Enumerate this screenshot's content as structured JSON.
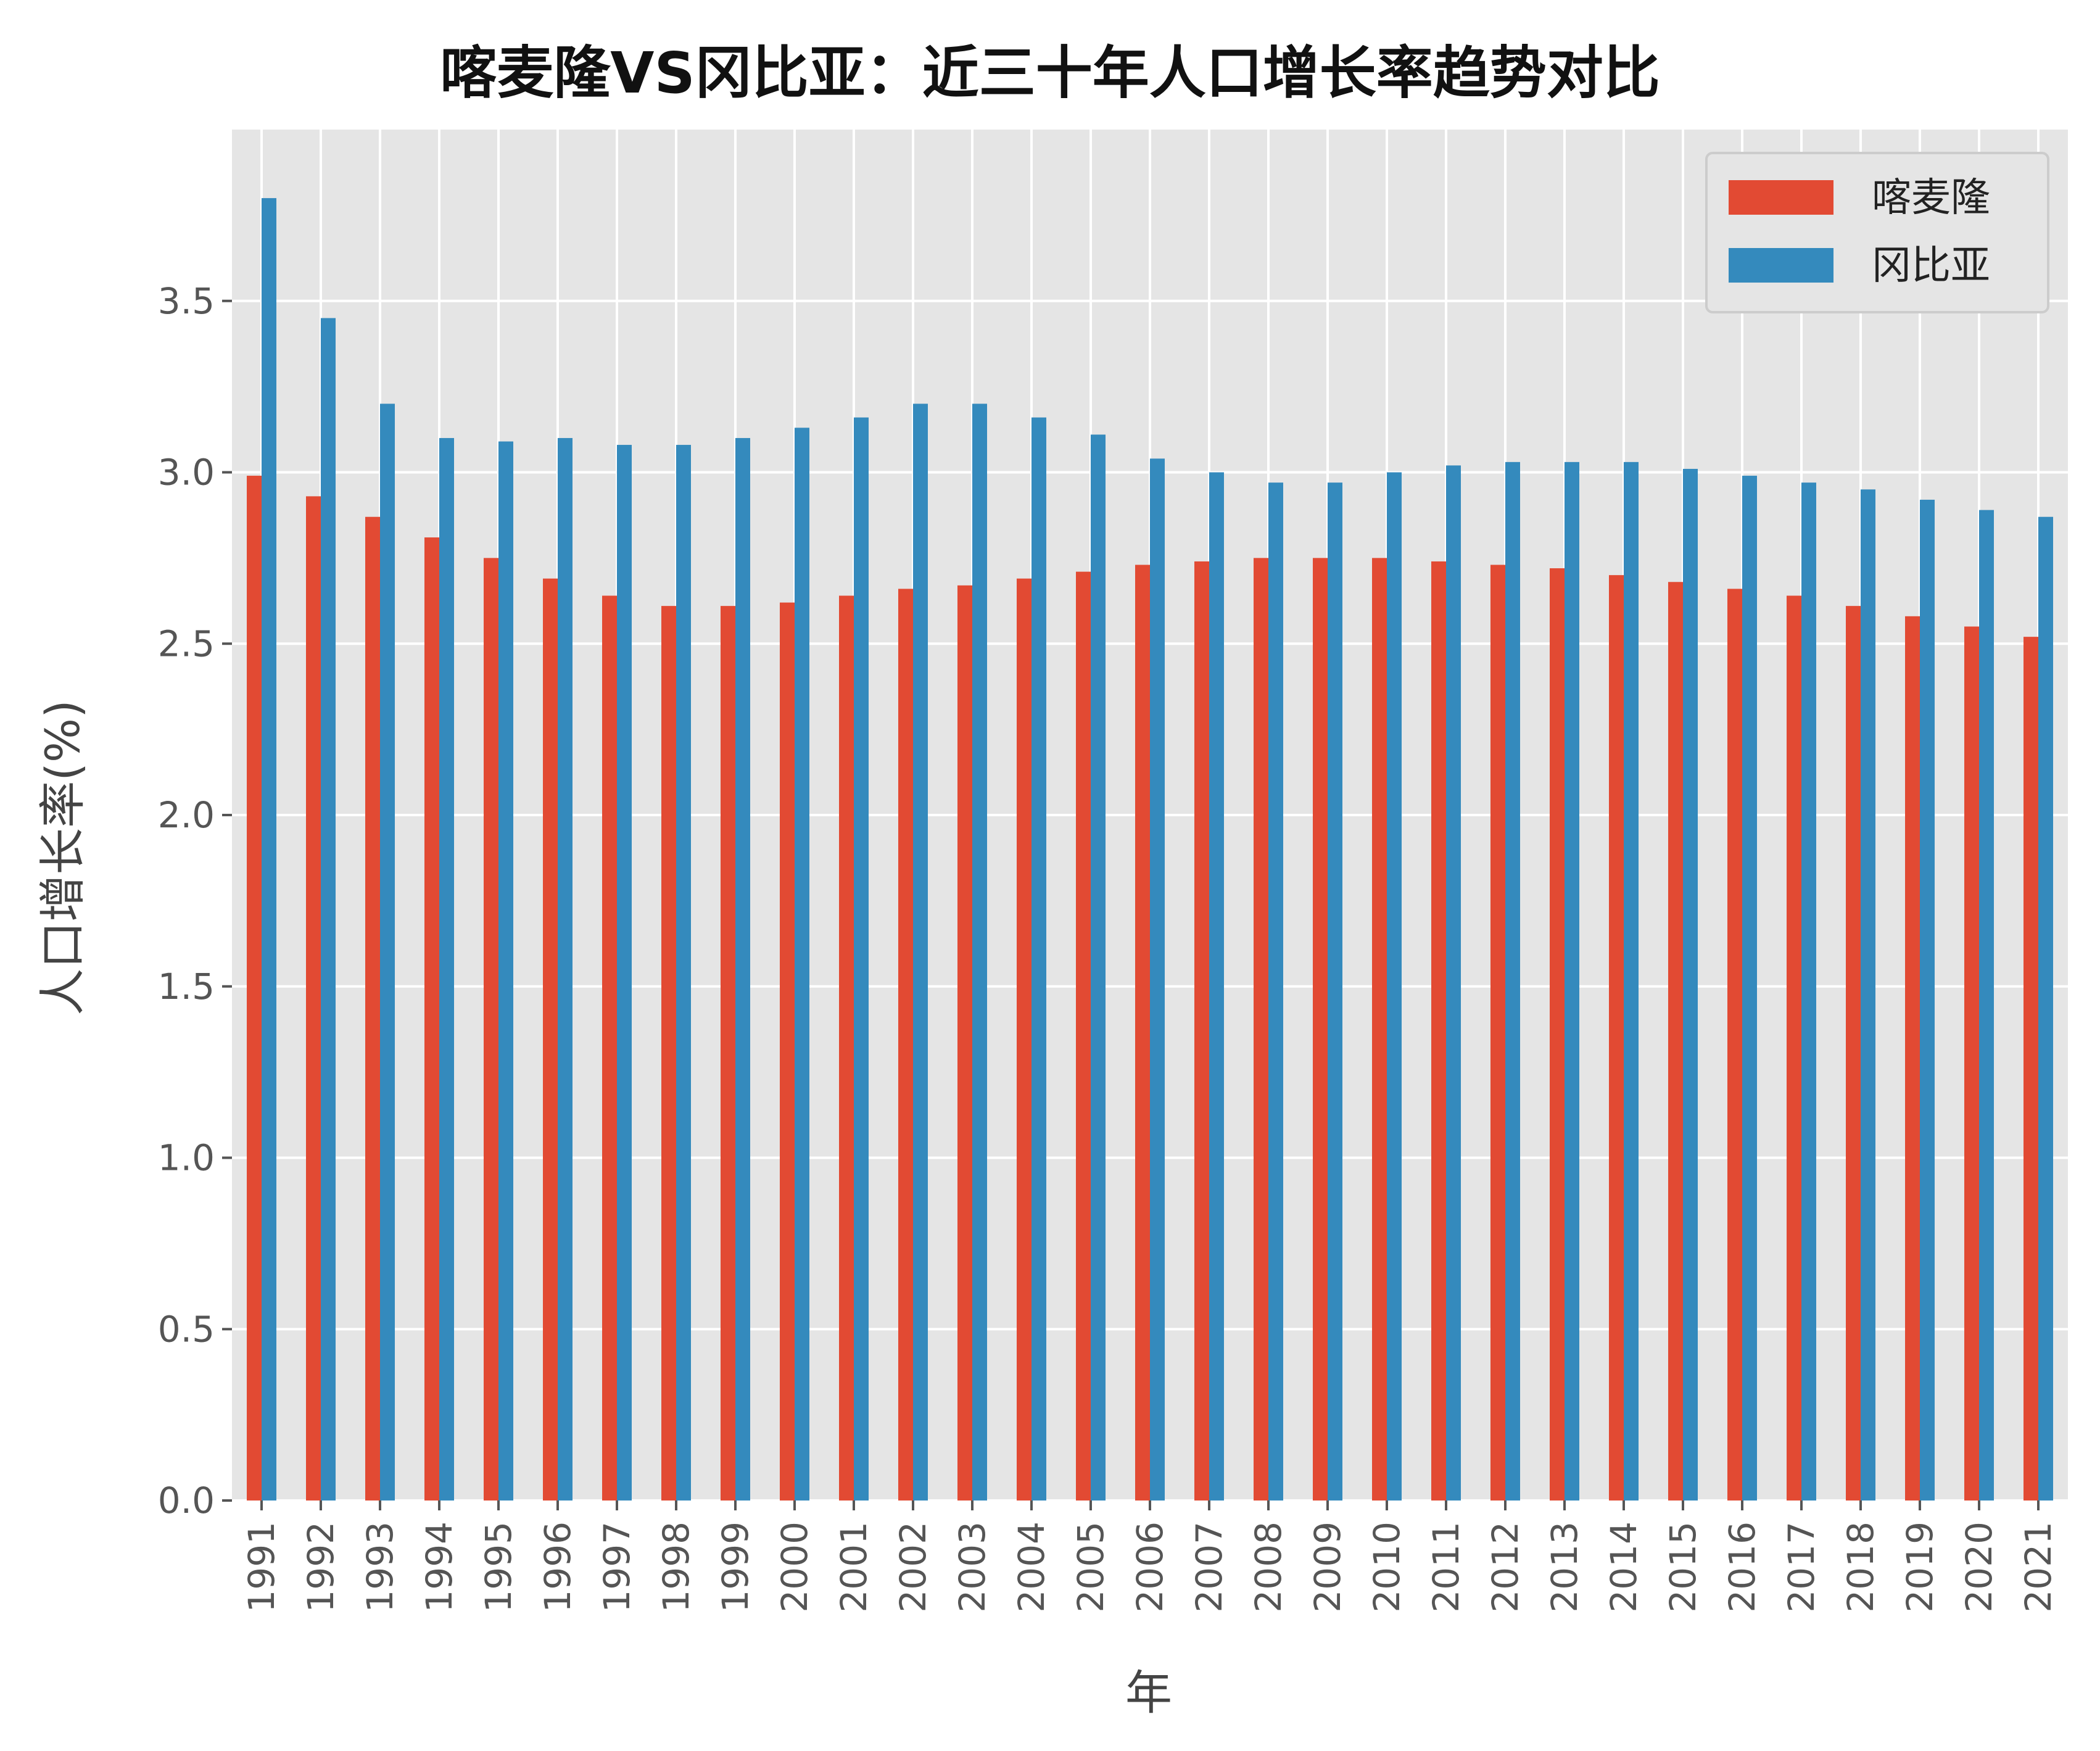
{
  "chart_data": {
    "type": "bar",
    "title": "喀麦隆VS冈比亚：近三十年人口增长率趋势对比",
    "xlabel": "年",
    "ylabel": "人口增长率(%)",
    "ylim": [
      0,
      4.0
    ],
    "yticks": [
      "0.0",
      "0.5",
      "1.0",
      "1.5",
      "2.0",
      "2.5",
      "3.0",
      "3.5"
    ],
    "grid": true,
    "legend_position": "top-right",
    "categories": [
      "1991",
      "1992",
      "1993",
      "1994",
      "1995",
      "1996",
      "1997",
      "1998",
      "1999",
      "2000",
      "2001",
      "2002",
      "2003",
      "2004",
      "2005",
      "2006",
      "2007",
      "2008",
      "2009",
      "2010",
      "2011",
      "2012",
      "2013",
      "2014",
      "2015",
      "2016",
      "2017",
      "2018",
      "2019",
      "2020",
      "2021"
    ],
    "series": [
      {
        "name": "喀麦隆",
        "color": "#E24A33",
        "values": [
          2.99,
          2.93,
          2.87,
          2.81,
          2.75,
          2.69,
          2.64,
          2.61,
          2.61,
          2.62,
          2.64,
          2.66,
          2.67,
          2.69,
          2.71,
          2.73,
          2.74,
          2.75,
          2.75,
          2.75,
          2.74,
          2.73,
          2.72,
          2.7,
          2.68,
          2.66,
          2.64,
          2.61,
          2.58,
          2.55,
          2.52
        ]
      },
      {
        "name": "冈比亚",
        "color": "#348ABD",
        "values": [
          3.8,
          3.45,
          3.2,
          3.1,
          3.09,
          3.1,
          3.08,
          3.08,
          3.1,
          3.13,
          3.16,
          3.2,
          3.2,
          3.16,
          3.11,
          3.04,
          3.0,
          2.97,
          2.97,
          3.0,
          3.02,
          3.03,
          3.03,
          3.03,
          3.01,
          2.99,
          2.97,
          2.95,
          2.92,
          2.89,
          2.87
        ]
      }
    ]
  },
  "colors": {
    "plot_background": "#E5E5E5",
    "grid": "#FFFFFF",
    "legend_background": "#E5E5E5",
    "legend_border": "#CCCCCC"
  }
}
